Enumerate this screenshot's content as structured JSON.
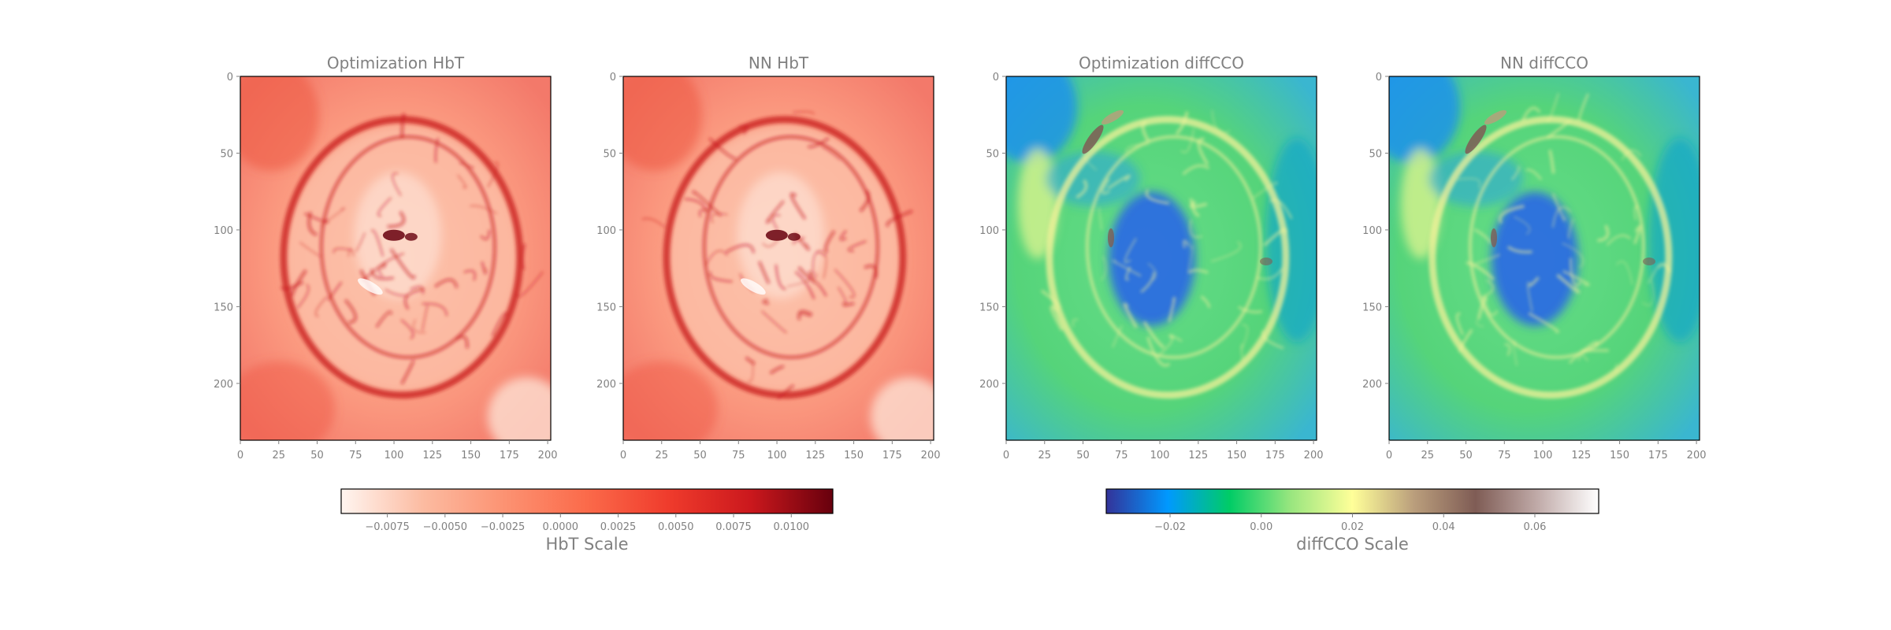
{
  "chart_data": [
    {
      "type": "heatmap",
      "title": "Optimization HbT",
      "colormap": "Reds",
      "colorbar": "hbt",
      "xticks": [
        0,
        25,
        50,
        75,
        100,
        125,
        150,
        175,
        200
      ],
      "yticks": [
        0,
        50,
        100,
        150,
        200
      ],
      "xlim": [
        0,
        202
      ],
      "ylim": [
        237,
        0
      ]
    },
    {
      "type": "heatmap",
      "title": "NN HbT",
      "colormap": "Reds",
      "colorbar": "hbt",
      "xticks": [
        0,
        25,
        50,
        75,
        100,
        125,
        150,
        175,
        200
      ],
      "yticks": [
        0,
        50,
        100,
        150,
        200
      ],
      "xlim": [
        0,
        202
      ],
      "ylim": [
        237,
        0
      ]
    },
    {
      "type": "heatmap",
      "title": "Optimization diffCCO",
      "colormap": "terrain",
      "colorbar": "cco",
      "xticks": [
        0,
        25,
        50,
        75,
        100,
        125,
        150,
        175,
        200
      ],
      "yticks": [
        0,
        50,
        100,
        150,
        200
      ],
      "xlim": [
        0,
        202
      ],
      "ylim": [
        237,
        0
      ]
    },
    {
      "type": "heatmap",
      "title": "NN diffCCO",
      "colormap": "terrain",
      "colorbar": "cco",
      "xticks": [
        0,
        25,
        50,
        75,
        100,
        125,
        150,
        175,
        200
      ],
      "yticks": [
        0,
        50,
        100,
        150,
        200
      ],
      "xlim": [
        0,
        202
      ],
      "ylim": [
        237,
        0
      ]
    }
  ],
  "colorbars": [
    {
      "id": "hbt",
      "label": "HbT Scale",
      "range": [
        -0.0095,
        0.0118
      ],
      "ticks": [
        -0.0075,
        -0.005,
        -0.0025,
        0.0,
        0.0025,
        0.005,
        0.0075,
        0.01
      ],
      "tick_labels": [
        "−0.0075",
        "−0.0050",
        "−0.0025",
        "0.0000",
        "0.0025",
        "0.0050",
        "0.0075",
        "0.0100"
      ],
      "colormap": "Reds"
    },
    {
      "id": "cco",
      "label": "diffCCO Scale",
      "range": [
        -0.034,
        0.074
      ],
      "ticks": [
        -0.02,
        0.0,
        0.02,
        0.04,
        0.06
      ],
      "tick_labels": [
        "−0.02",
        "0.00",
        "0.02",
        "0.04",
        "0.06"
      ],
      "colormap": "terrain"
    }
  ],
  "colors": {
    "text": "#808080",
    "axis": "#000000",
    "reds": [
      "#fff5f0",
      "#fcbba1",
      "#fc9272",
      "#fb6a4a",
      "#ef3b2c",
      "#cb181d",
      "#67000d"
    ],
    "terrain": [
      "#333399",
      "#0099ff",
      "#00cc66",
      "#99e67f",
      "#ffff99",
      "#ba9e7c",
      "#7f5c55",
      "#c0aaa8",
      "#ffffff"
    ]
  }
}
